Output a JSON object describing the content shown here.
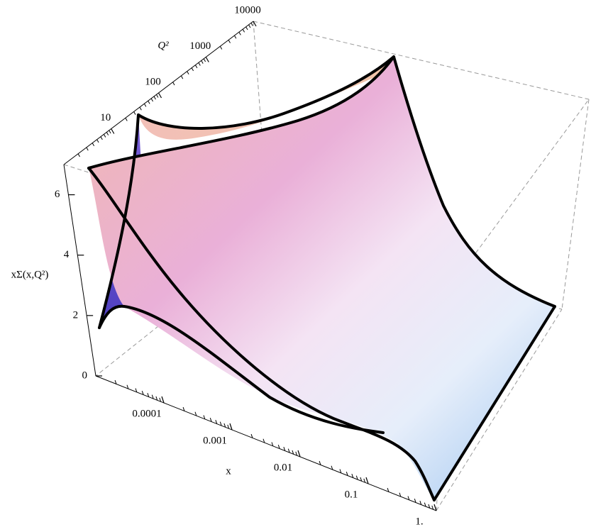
{
  "chart_data": {
    "type": "surface3d",
    "xlabel": "x",
    "ylabel": "Q²",
    "zlabel": "xΣ(x,Q²)",
    "xscale": "log",
    "xlim": [
      1e-05,
      1
    ],
    "xticks": [
      0.0001,
      0.001,
      0.01,
      0.1,
      {
        "value": 1,
        "label": "1."
      }
    ],
    "yscale": "log",
    "ylim": [
      1,
      10000
    ],
    "yticks": [
      10,
      100,
      1000,
      10000
    ],
    "zlim": [
      0,
      7
    ],
    "zticks": [
      0,
      2,
      4,
      6
    ],
    "box": true
  }
}
